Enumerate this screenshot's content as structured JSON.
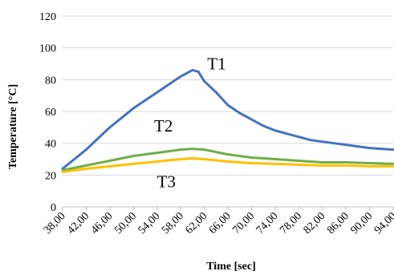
{
  "chart_data": {
    "type": "line",
    "xlabel": "Time [sec]",
    "ylabel": "Temperature [°C]",
    "xlim": [
      38,
      94
    ],
    "ylim": [
      0,
      120
    ],
    "y_ticks": [
      "0",
      "20",
      "40",
      "60",
      "80",
      "100",
      "120"
    ],
    "x_ticks": [
      "38,00",
      "42,00",
      "46,00",
      "50,00",
      "54,00",
      "58,00",
      "62,00",
      "66,00",
      "70,00",
      "74,00",
      "78,00",
      "82,00",
      "86,00",
      "90,00",
      "94,00"
    ],
    "grid": "horizontal",
    "legend": "none",
    "series": [
      {
        "name": "T1",
        "color": "#4472C4",
        "label_at": [
          62.5,
          90
        ],
        "points": [
          [
            38,
            24
          ],
          [
            40,
            30
          ],
          [
            42,
            36
          ],
          [
            44,
            43
          ],
          [
            46,
            50
          ],
          [
            48,
            56
          ],
          [
            50,
            62
          ],
          [
            52,
            67
          ],
          [
            54,
            72
          ],
          [
            56,
            77
          ],
          [
            58,
            82
          ],
          [
            59,
            84
          ],
          [
            60,
            86
          ],
          [
            61,
            85
          ],
          [
            62,
            79
          ],
          [
            64,
            72
          ],
          [
            66,
            64
          ],
          [
            68,
            59
          ],
          [
            70,
            55
          ],
          [
            72,
            51
          ],
          [
            74,
            48
          ],
          [
            76,
            46
          ],
          [
            78,
            44
          ],
          [
            80,
            42
          ],
          [
            82,
            41
          ],
          [
            84,
            40
          ],
          [
            86,
            39
          ],
          [
            88,
            38
          ],
          [
            90,
            37
          ],
          [
            92,
            36.5
          ],
          [
            94,
            36
          ]
        ]
      },
      {
        "name": "T2",
        "color": "#70AD47",
        "label_at": [
          53.5,
          51
        ],
        "points": [
          [
            38,
            23
          ],
          [
            42,
            26
          ],
          [
            46,
            29
          ],
          [
            50,
            32
          ],
          [
            54,
            34
          ],
          [
            58,
            36
          ],
          [
            60,
            36.5
          ],
          [
            62,
            36
          ],
          [
            66,
            33
          ],
          [
            70,
            31
          ],
          [
            74,
            30
          ],
          [
            78,
            29
          ],
          [
            82,
            28
          ],
          [
            86,
            28
          ],
          [
            90,
            27.5
          ],
          [
            94,
            27
          ]
        ]
      },
      {
        "name": "T3",
        "color": "#FFC000",
        "label_at": [
          54,
          16
        ],
        "points": [
          [
            38,
            22
          ],
          [
            42,
            24
          ],
          [
            46,
            25.5
          ],
          [
            50,
            27
          ],
          [
            54,
            28.5
          ],
          [
            58,
            30
          ],
          [
            60,
            30.5
          ],
          [
            62,
            30
          ],
          [
            66,
            28.5
          ],
          [
            70,
            27.5
          ],
          [
            74,
            27
          ],
          [
            78,
            26.5
          ],
          [
            82,
            26
          ],
          [
            86,
            26
          ],
          [
            90,
            25.5
          ],
          [
            94,
            25.5
          ]
        ]
      }
    ]
  }
}
